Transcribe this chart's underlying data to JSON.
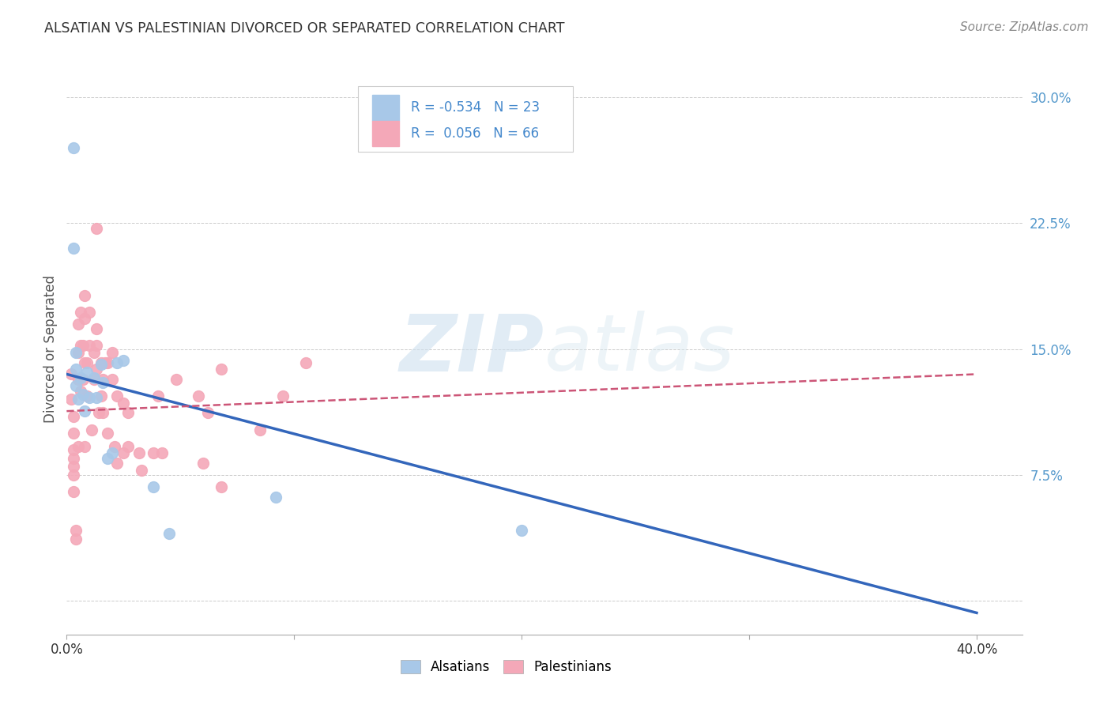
{
  "title": "ALSATIAN VS PALESTINIAN DIVORCED OR SEPARATED CORRELATION CHART",
  "source": "Source: ZipAtlas.com",
  "ylabel": "Divorced or Separated",
  "ytick_vals": [
    0.0,
    0.075,
    0.15,
    0.225,
    0.3
  ],
  "ytick_labels": [
    "",
    "7.5%",
    "15.0%",
    "22.5%",
    "30.0%"
  ],
  "xtick_vals": [
    0.0,
    0.1,
    0.2,
    0.3,
    0.4
  ],
  "xtick_labels": [
    "0.0%",
    "",
    "",
    "",
    "40.0%"
  ],
  "xlim": [
    0.0,
    0.42
  ],
  "ylim": [
    -0.02,
    0.32
  ],
  "alsatian_color": "#a8c8e8",
  "palestinian_color": "#f4a8b8",
  "alsatian_line_color": "#3366bb",
  "palestinian_line_color": "#cc5577",
  "alsatian_R": -0.534,
  "alsatian_N": 23,
  "palestinian_R": 0.056,
  "palestinian_N": 66,
  "watermark": "ZIPatlas",
  "legend_alsatian": "Alsatians",
  "legend_palestinian": "Palestinians",
  "alsatian_x": [
    0.003,
    0.003,
    0.004,
    0.004,
    0.004,
    0.005,
    0.006,
    0.007,
    0.008,
    0.009,
    0.01,
    0.012,
    0.013,
    0.015,
    0.016,
    0.018,
    0.02,
    0.022,
    0.025,
    0.038,
    0.092,
    0.2,
    0.045
  ],
  "alsatian_y": [
    0.27,
    0.21,
    0.148,
    0.138,
    0.128,
    0.12,
    0.133,
    0.123,
    0.113,
    0.136,
    0.121,
    0.133,
    0.121,
    0.141,
    0.13,
    0.085,
    0.088,
    0.142,
    0.143,
    0.068,
    0.062,
    0.042,
    0.04
  ],
  "palestinian_x": [
    0.002,
    0.002,
    0.003,
    0.003,
    0.003,
    0.003,
    0.003,
    0.003,
    0.003,
    0.005,
    0.005,
    0.005,
    0.005,
    0.006,
    0.006,
    0.006,
    0.007,
    0.007,
    0.008,
    0.008,
    0.008,
    0.008,
    0.009,
    0.009,
    0.01,
    0.01,
    0.011,
    0.012,
    0.012,
    0.013,
    0.013,
    0.013,
    0.014,
    0.015,
    0.015,
    0.016,
    0.016,
    0.017,
    0.018,
    0.018,
    0.02,
    0.02,
    0.021,
    0.022,
    0.022,
    0.025,
    0.025,
    0.027,
    0.027,
    0.032,
    0.033,
    0.038,
    0.04,
    0.042,
    0.048,
    0.058,
    0.062,
    0.068,
    0.085,
    0.105,
    0.06,
    0.068,
    0.095,
    0.013,
    0.004,
    0.004
  ],
  "palestinian_y": [
    0.135,
    0.12,
    0.11,
    0.1,
    0.09,
    0.085,
    0.08,
    0.075,
    0.065,
    0.165,
    0.148,
    0.132,
    0.092,
    0.172,
    0.152,
    0.125,
    0.152,
    0.132,
    0.182,
    0.168,
    0.142,
    0.092,
    0.142,
    0.122,
    0.172,
    0.152,
    0.102,
    0.148,
    0.132,
    0.162,
    0.152,
    0.138,
    0.112,
    0.142,
    0.122,
    0.132,
    0.112,
    0.142,
    0.142,
    0.1,
    0.148,
    0.132,
    0.092,
    0.122,
    0.082,
    0.118,
    0.088,
    0.112,
    0.092,
    0.088,
    0.078,
    0.088,
    0.122,
    0.088,
    0.132,
    0.122,
    0.112,
    0.138,
    0.102,
    0.142,
    0.082,
    0.068,
    0.122,
    0.222,
    0.042,
    0.037
  ]
}
